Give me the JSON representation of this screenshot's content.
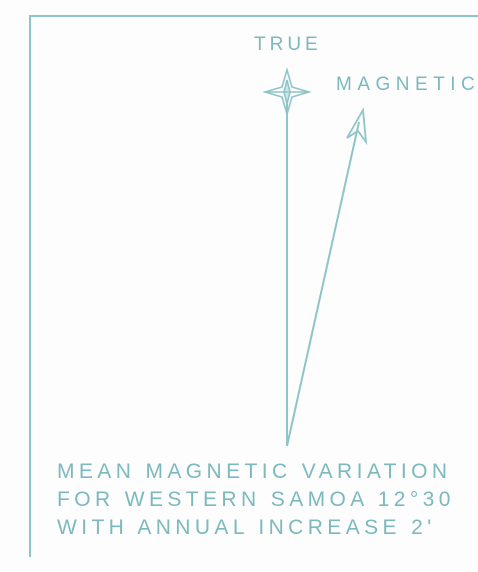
{
  "diagram": {
    "true_label": "TRUE",
    "magnetic_label": "MAGNETIC",
    "note_lines": [
      "MEAN MAGNETIC VARIATION",
      "FOR WESTERN SAMOA 12°30",
      "WITH ANNUAL INCREASE 2'"
    ],
    "line_color": "#8fc4c9",
    "text_color": "#7cb9bf"
  }
}
